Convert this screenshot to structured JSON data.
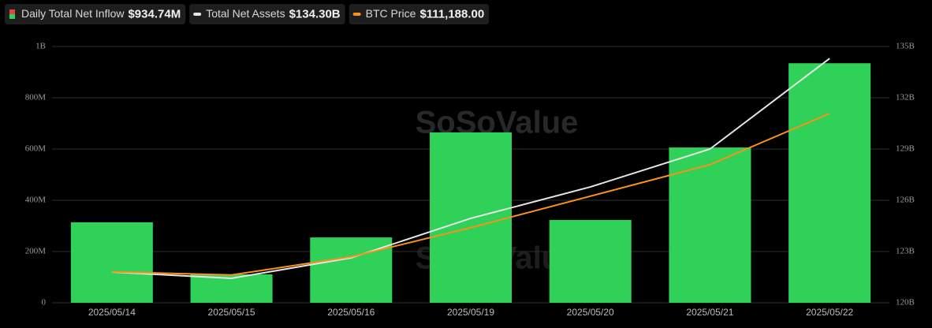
{
  "chart_data": {
    "type": "bar-line",
    "watermark": "SoSoValue",
    "categories": [
      "2025/05/14",
      "2025/05/15",
      "2025/05/16",
      "2025/05/19",
      "2025/05/20",
      "2025/05/21",
      "2025/05/22"
    ],
    "ylim": [
      0,
      1000000000
    ],
    "yticks": [
      {
        "value": 0,
        "label": "0"
      },
      {
        "value": 200000000,
        "label": "200M"
      },
      {
        "value": 400000000,
        "label": "400M"
      },
      {
        "value": 600000000,
        "label": "600M"
      },
      {
        "value": 800000000,
        "label": "800M"
      },
      {
        "value": 1000000000,
        "label": "1B"
      }
    ],
    "y2lim": [
      120000000000,
      135000000000
    ],
    "y2ticks": [
      {
        "value": 120000000000,
        "label": "120B"
      },
      {
        "value": 123000000000,
        "label": "123B"
      },
      {
        "value": 126000000000,
        "label": "126B"
      },
      {
        "value": 129000000000,
        "label": "129B"
      },
      {
        "value": 132000000000,
        "label": "132B"
      },
      {
        "value": 135000000000,
        "label": "135B"
      }
    ],
    "y3lim": [
      101400,
      114650
    ],
    "grid": true,
    "series": [
      {
        "name": "Daily Total Net Inflow",
        "legend_value": "$934.74M",
        "kind": "bar",
        "color": "#2fd158",
        "axis": "y",
        "values": [
          314000000,
          111000000,
          255000000,
          665000000,
          323000000,
          606000000,
          934740000
        ]
      },
      {
        "name": "Total Net Assets",
        "legend_value": "$134.30B",
        "kind": "line",
        "color": "#e6e6e6",
        "axis": "y2",
        "values": [
          121800000000,
          121430000000,
          122630000000,
          124940000000,
          126780000000,
          129000000000,
          134300000000
        ]
      },
      {
        "name": "BTC Price",
        "legend_value": "$111,188.00",
        "kind": "line",
        "color": "#f7931a",
        "axis": "y3",
        "values": [
          103000,
          102837,
          103774,
          105282,
          106911,
          108541,
          111188
        ]
      }
    ]
  }
}
